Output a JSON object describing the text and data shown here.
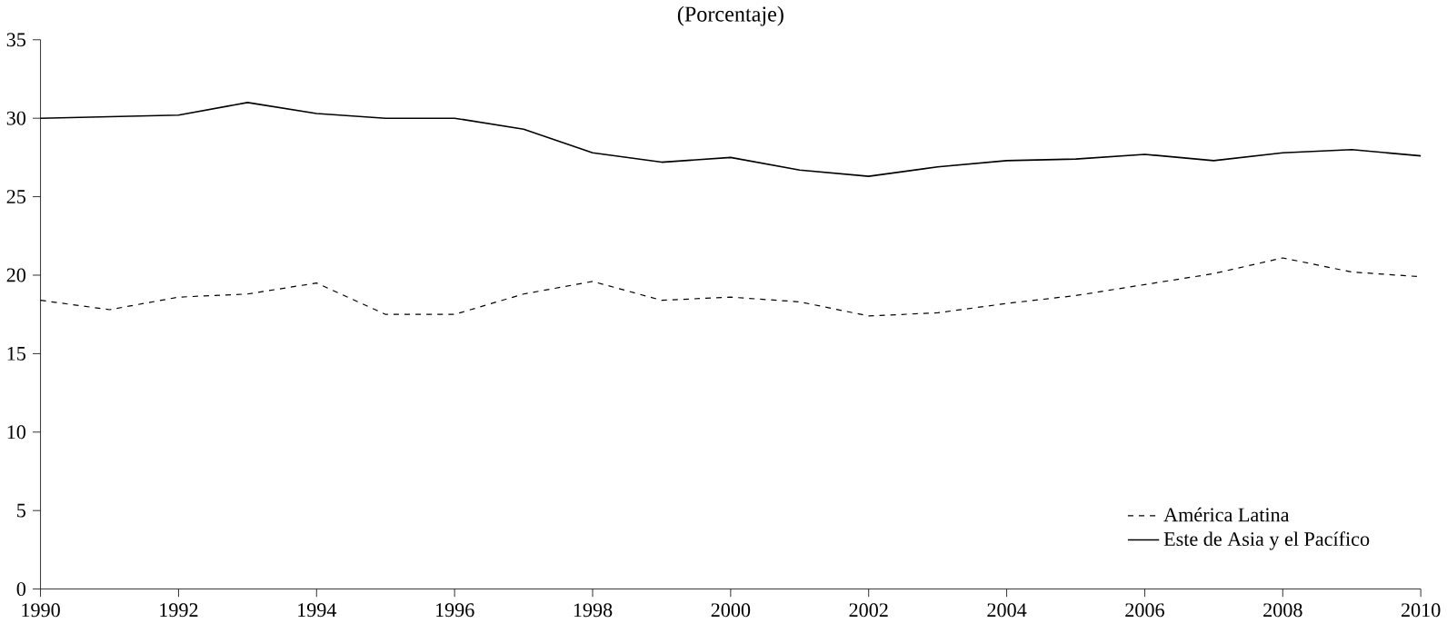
{
  "chart_data": {
    "type": "line",
    "title": "(Porcentaje)",
    "x": [
      1990,
      1991,
      1992,
      1993,
      1994,
      1995,
      1996,
      1997,
      1998,
      1999,
      2000,
      2001,
      2002,
      2003,
      2004,
      2005,
      2006,
      2007,
      2008,
      2009,
      2010
    ],
    "series": [
      {
        "name": "América Latina",
        "color": "#000000",
        "line_style": "dashed",
        "values": [
          18.4,
          17.8,
          18.6,
          18.8,
          19.5,
          17.5,
          17.5,
          18.8,
          19.6,
          18.4,
          18.6,
          18.3,
          17.4,
          17.6,
          18.2,
          18.7,
          19.4,
          20.1,
          21.1,
          20.2,
          19.9
        ]
      },
      {
        "name": "Este de Asia y el Pacífico",
        "color": "#000000",
        "line_style": "solid",
        "values": [
          30.0,
          30.1,
          30.2,
          31.0,
          30.3,
          30.0,
          30.0,
          29.3,
          27.8,
          27.2,
          27.5,
          26.7,
          26.3,
          26.9,
          27.3,
          27.4,
          27.7,
          27.3,
          27.8,
          28.0,
          27.6
        ]
      }
    ],
    "xlim": [
      1990,
      2010
    ],
    "xticks": [
      1990,
      1992,
      1994,
      1996,
      1998,
      2000,
      2002,
      2004,
      2006,
      2008,
      2010
    ],
    "ylim": [
      0,
      35
    ],
    "yticks": [
      0,
      5,
      10,
      15,
      20,
      25,
      30,
      35
    ],
    "grid": false,
    "legend": "bottom right",
    "marker": "none"
  }
}
